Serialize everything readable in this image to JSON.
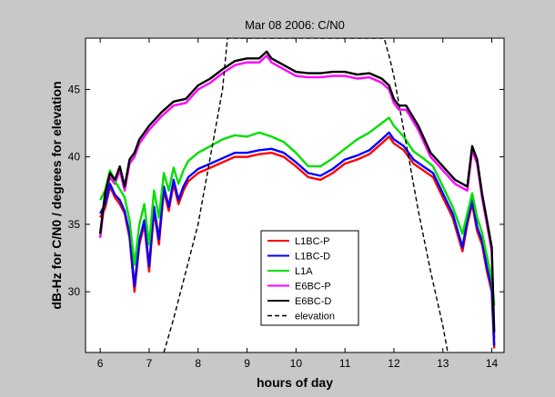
{
  "chart_data": {
    "type": "line",
    "title": "Mar 08 2006: C/N0",
    "xlabel": "hours of day",
    "ylabel": "dB-Hz for C/N0  /  degrees for elevation",
    "xlim": [
      5.7,
      14.25
    ],
    "ylim": [
      25.5,
      48.8
    ],
    "xticks": [
      6,
      7,
      8,
      9,
      10,
      11,
      12,
      13,
      14
    ],
    "yticks": [
      30,
      35,
      40,
      45
    ],
    "grid": false,
    "legend_position": "lower-center",
    "series": [
      {
        "name": "L1BC-P",
        "color": "#ff0000",
        "x": [
          6.0,
          6.1,
          6.2,
          6.3,
          6.4,
          6.5,
          6.6,
          6.7,
          6.8,
          6.9,
          7.0,
          7.1,
          7.2,
          7.3,
          7.4,
          7.5,
          7.6,
          7.7,
          7.8,
          7.9,
          8.0,
          8.25,
          8.5,
          8.75,
          9.0,
          9.25,
          9.5,
          9.75,
          10.0,
          10.25,
          10.5,
          10.75,
          11.0,
          11.25,
          11.5,
          11.75,
          11.9,
          12.0,
          12.2,
          12.4,
          12.6,
          12.8,
          13.0,
          13.2,
          13.4,
          13.5,
          13.6,
          13.7,
          13.8,
          13.9,
          14.0,
          14.05
        ],
        "y": [
          35.5,
          36.2,
          37.8,
          37.0,
          36.5,
          35.8,
          34.0,
          30.0,
          33.5,
          35.0,
          31.5,
          36.0,
          33.5,
          37.5,
          36.0,
          38.0,
          36.5,
          37.5,
          38.2,
          38.5,
          38.8,
          39.2,
          39.6,
          40.0,
          40.0,
          40.2,
          40.3,
          40.0,
          39.3,
          38.5,
          38.3,
          38.8,
          39.5,
          39.8,
          40.2,
          41.0,
          41.5,
          41.0,
          40.5,
          39.5,
          39.0,
          38.5,
          37.0,
          35.5,
          33.0,
          35.0,
          36.5,
          34.5,
          33.5,
          31.5,
          30.0,
          25.8
        ]
      },
      {
        "name": "L1BC-D",
        "color": "#0000ff",
        "x": [
          6.0,
          6.1,
          6.2,
          6.3,
          6.4,
          6.5,
          6.6,
          6.7,
          6.8,
          6.9,
          7.0,
          7.1,
          7.2,
          7.3,
          7.4,
          7.5,
          7.6,
          7.7,
          7.8,
          7.9,
          8.0,
          8.25,
          8.5,
          8.75,
          9.0,
          9.25,
          9.5,
          9.75,
          10.0,
          10.25,
          10.5,
          10.75,
          11.0,
          11.25,
          11.5,
          11.75,
          11.9,
          12.0,
          12.2,
          12.4,
          12.6,
          12.8,
          13.0,
          13.2,
          13.4,
          13.5,
          13.6,
          13.7,
          13.8,
          13.9,
          14.0,
          14.05
        ],
        "y": [
          35.8,
          36.5,
          38.0,
          37.2,
          36.8,
          36.0,
          34.3,
          30.4,
          33.8,
          35.3,
          31.9,
          36.3,
          33.9,
          37.8,
          36.3,
          38.3,
          36.8,
          37.8,
          38.5,
          38.8,
          39.1,
          39.5,
          39.9,
          40.3,
          40.3,
          40.5,
          40.6,
          40.3,
          39.6,
          38.8,
          38.6,
          39.1,
          39.8,
          40.1,
          40.5,
          41.3,
          41.8,
          41.3,
          40.8,
          39.8,
          39.3,
          38.8,
          37.3,
          35.8,
          33.3,
          35.3,
          36.8,
          34.8,
          33.8,
          31.8,
          30.3,
          26.0
        ]
      },
      {
        "name": "L1A",
        "color": "#00e000",
        "x": [
          6.0,
          6.1,
          6.2,
          6.3,
          6.4,
          6.5,
          6.6,
          6.7,
          6.8,
          6.9,
          7.0,
          7.1,
          7.2,
          7.3,
          7.4,
          7.5,
          7.6,
          7.7,
          7.8,
          7.9,
          8.0,
          8.25,
          8.5,
          8.75,
          9.0,
          9.25,
          9.5,
          9.75,
          10.0,
          10.25,
          10.5,
          10.75,
          11.0,
          11.25,
          11.5,
          11.75,
          11.9,
          12.0,
          12.2,
          12.4,
          12.6,
          12.8,
          13.0,
          13.2,
          13.4,
          13.5,
          13.6,
          13.7,
          13.8,
          13.9,
          14.0,
          14.05
        ],
        "y": [
          36.8,
          37.5,
          39.0,
          38.2,
          37.6,
          37.0,
          35.3,
          32.0,
          35.0,
          36.5,
          33.5,
          37.5,
          35.5,
          38.8,
          37.5,
          39.2,
          38.0,
          39.0,
          39.7,
          40.0,
          40.3,
          40.8,
          41.3,
          41.6,
          41.5,
          41.8,
          41.5,
          41.1,
          40.3,
          39.3,
          39.3,
          39.9,
          40.6,
          41.3,
          41.8,
          42.5,
          42.9,
          42.3,
          41.5,
          40.4,
          39.9,
          39.3,
          37.8,
          36.3,
          34.3,
          35.8,
          37.3,
          35.5,
          34.4,
          32.6,
          31.0,
          29.0
        ]
      },
      {
        "name": "E6BC-P",
        "color": "#ff00ff",
        "x": [
          6.0,
          6.1,
          6.2,
          6.3,
          6.4,
          6.5,
          6.6,
          6.7,
          6.8,
          6.9,
          7.0,
          7.25,
          7.5,
          7.75,
          8.0,
          8.25,
          8.5,
          8.75,
          9.0,
          9.25,
          9.4,
          9.5,
          9.75,
          10.0,
          10.25,
          10.5,
          10.75,
          11.0,
          11.25,
          11.5,
          11.75,
          11.9,
          12.0,
          12.1,
          12.25,
          12.5,
          12.75,
          13.0,
          13.25,
          13.5,
          13.6,
          13.7,
          13.8,
          13.9,
          14.0,
          14.05
        ],
        "y": [
          34.0,
          37.0,
          38.5,
          38.0,
          39.0,
          37.5,
          39.5,
          40.0,
          41.0,
          41.5,
          42.0,
          43.0,
          43.8,
          44.0,
          45.0,
          45.5,
          46.2,
          46.8,
          47.0,
          47.0,
          47.5,
          47.0,
          46.5,
          46.0,
          45.9,
          45.9,
          46.0,
          46.0,
          45.8,
          45.9,
          45.5,
          45.0,
          44.0,
          43.5,
          43.5,
          42.0,
          40.0,
          39.0,
          38.0,
          37.5,
          40.5,
          39.5,
          37.0,
          35.0,
          33.0,
          26.5
        ]
      },
      {
        "name": "E6BC-D",
        "color": "#000000",
        "x": [
          6.0,
          6.1,
          6.2,
          6.3,
          6.4,
          6.5,
          6.6,
          6.7,
          6.8,
          6.9,
          7.0,
          7.25,
          7.5,
          7.75,
          8.0,
          8.25,
          8.5,
          8.75,
          9.0,
          9.25,
          9.4,
          9.5,
          9.75,
          10.0,
          10.25,
          10.5,
          10.75,
          11.0,
          11.25,
          11.5,
          11.75,
          11.9,
          12.0,
          12.1,
          12.25,
          12.5,
          12.75,
          13.0,
          13.25,
          13.5,
          13.6,
          13.7,
          13.8,
          13.9,
          14.0,
          14.05
        ],
        "y": [
          34.3,
          37.3,
          38.8,
          38.3,
          39.3,
          37.8,
          39.8,
          40.3,
          41.3,
          41.8,
          42.3,
          43.3,
          44.1,
          44.3,
          45.3,
          45.8,
          46.5,
          47.1,
          47.3,
          47.3,
          47.8,
          47.3,
          46.8,
          46.3,
          46.2,
          46.2,
          46.3,
          46.3,
          46.1,
          46.2,
          45.8,
          45.3,
          44.3,
          43.8,
          43.8,
          42.3,
          40.3,
          39.3,
          38.3,
          37.8,
          40.8,
          39.8,
          37.3,
          35.3,
          33.3,
          27.0
        ]
      },
      {
        "name": "elevation",
        "color": "#000000",
        "dash": true,
        "x": [
          7.3,
          7.5,
          7.75,
          8.0,
          8.25,
          8.5,
          8.6,
          11.8,
          11.9,
          12.0,
          12.25,
          12.5,
          12.75,
          13.0,
          13.1
        ],
        "y": [
          25.5,
          28.0,
          31.5,
          35.0,
          40.0,
          45.0,
          48.8,
          48.8,
          47.5,
          46.0,
          41.0,
          36.0,
          31.5,
          27.5,
          25.5
        ]
      }
    ]
  }
}
